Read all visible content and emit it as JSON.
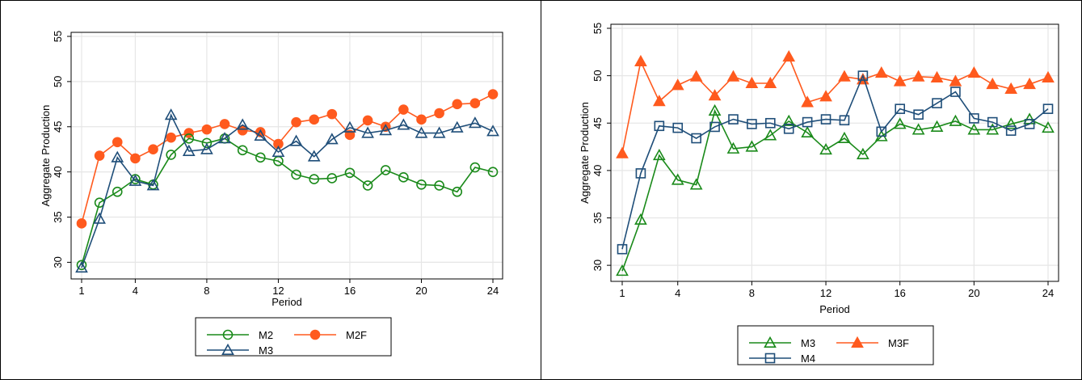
{
  "chart_data": [
    {
      "type": "line",
      "xlabel": "Period",
      "ylabel": "Aggregate Production",
      "x_ticks": [
        "1",
        "4",
        "8",
        "12",
        "16",
        "20",
        "24"
      ],
      "y_ticks": [
        "30",
        "35",
        "40",
        "45",
        "50",
        "55"
      ],
      "xlim": [
        1,
        24
      ],
      "ylim": [
        29,
        55
      ],
      "grid": true,
      "x": [
        1,
        2,
        3,
        4,
        5,
        6,
        7,
        8,
        9,
        10,
        11,
        12,
        13,
        14,
        15,
        16,
        17,
        18,
        19,
        20,
        21,
        22,
        23,
        24
      ],
      "series": [
        {
          "name": "M2",
          "marker": "circle-hollow",
          "color": "#1a8a1a",
          "values": [
            29.7,
            36.6,
            37.8,
            39.2,
            38.6,
            41.9,
            43.7,
            43.2,
            43.7,
            42.4,
            41.6,
            41.2,
            39.7,
            39.2,
            39.3,
            39.9,
            38.5,
            40.2,
            39.4,
            38.6,
            38.5,
            37.8,
            40.5,
            40.0
          ]
        },
        {
          "name": "M2F",
          "marker": "circle-filled",
          "color": "#ff5a1e",
          "values": [
            34.3,
            41.8,
            43.3,
            41.5,
            42.5,
            43.8,
            44.3,
            44.7,
            45.3,
            44.6,
            44.4,
            43.1,
            45.5,
            45.8,
            46.4,
            44.1,
            45.7,
            45.0,
            46.9,
            45.8,
            46.5,
            47.5,
            47.6,
            48.6
          ]
        },
        {
          "name": "M3",
          "marker": "triangle-hollow",
          "color": "#1f4e79",
          "values": [
            29.4,
            34.8,
            41.6,
            39.0,
            38.5,
            46.3,
            42.3,
            42.5,
            43.7,
            45.2,
            44.0,
            42.2,
            43.4,
            41.7,
            43.6,
            44.9,
            44.3,
            44.6,
            45.2,
            44.3,
            44.3,
            44.9,
            45.4,
            44.5
          ]
        }
      ],
      "legend": {
        "placement": "bottom",
        "entries": [
          "M2",
          "M2F",
          "M3"
        ]
      }
    },
    {
      "type": "line",
      "xlabel": "Period",
      "ylabel": "Aggregate Production",
      "x_ticks": [
        "1",
        "4",
        "8",
        "12",
        "16",
        "20",
        "24"
      ],
      "y_ticks": [
        "30",
        "35",
        "40",
        "45",
        "50",
        "55"
      ],
      "xlim": [
        1,
        24
      ],
      "ylim": [
        29,
        55
      ],
      "grid": true,
      "x": [
        1,
        2,
        3,
        4,
        5,
        6,
        7,
        8,
        9,
        10,
        11,
        12,
        13,
        14,
        15,
        16,
        17,
        18,
        19,
        20,
        21,
        22,
        23,
        24
      ],
      "series": [
        {
          "name": "M3",
          "marker": "triangle-hollow",
          "color": "#1a8a1a",
          "values": [
            29.4,
            34.8,
            41.6,
            39.0,
            38.5,
            46.3,
            42.3,
            42.5,
            43.7,
            45.2,
            44.0,
            42.2,
            43.4,
            41.7,
            43.6,
            44.9,
            44.3,
            44.6,
            45.2,
            44.3,
            44.3,
            44.9,
            45.4,
            44.5
          ]
        },
        {
          "name": "M3F",
          "marker": "triangle-filled",
          "color": "#ff5a1e",
          "values": [
            41.8,
            51.5,
            47.3,
            49.0,
            49.9,
            47.9,
            49.9,
            49.2,
            49.2,
            52.0,
            47.2,
            47.8,
            49.9,
            49.6,
            50.3,
            49.4,
            49.9,
            49.8,
            49.4,
            50.3,
            49.1,
            48.6,
            49.1,
            49.8
          ]
        },
        {
          "name": "M4",
          "marker": "square-hollow",
          "color": "#1f4e79",
          "values": [
            31.7,
            39.7,
            44.7,
            44.5,
            43.4,
            44.6,
            45.4,
            44.9,
            45.0,
            44.4,
            45.1,
            45.4,
            45.3,
            50.0,
            44.1,
            46.5,
            45.9,
            47.1,
            48.3,
            45.5,
            45.1,
            44.2,
            44.9,
            46.5
          ]
        }
      ],
      "legend": {
        "placement": "bottom",
        "entries": [
          "M3",
          "M3F",
          "M4"
        ]
      }
    }
  ]
}
